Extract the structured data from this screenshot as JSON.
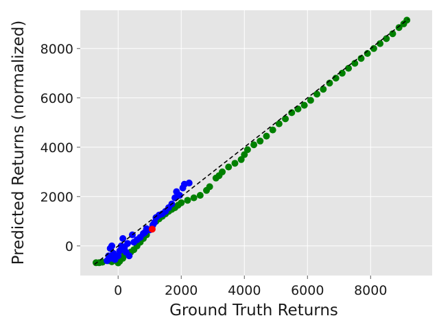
{
  "chart_data": {
    "type": "scatter",
    "title": "",
    "xlabel": "Ground Truth Returns",
    "ylabel": "Predicted Returns (normalized)",
    "xlim": [
      -1200,
      9950
    ],
    "ylim": [
      -1200,
      9550
    ],
    "xticks": [
      0,
      2000,
      4000,
      6000,
      8000
    ],
    "yticks": [
      0,
      2000,
      4000,
      6000,
      8000
    ],
    "xtick_labels": [
      "0",
      "2000",
      "4000",
      "6000",
      "8000"
    ],
    "ytick_labels": [
      "0",
      "2000",
      "4000",
      "6000",
      "8000"
    ],
    "grid": true,
    "legend": "none",
    "reference_line": {
      "style": "dashed",
      "color": "#000000",
      "x": [
        -750,
        9200
      ],
      "y": [
        -750,
        9200
      ]
    },
    "series": [
      {
        "color": "#008000",
        "points": [
          [
            -700,
            -680
          ],
          [
            -600,
            -680
          ],
          [
            -500,
            -660
          ],
          [
            -300,
            -600
          ],
          [
            -200,
            -640
          ],
          [
            -100,
            -580
          ],
          [
            0,
            -690
          ],
          [
            50,
            -620
          ],
          [
            150,
            -500
          ],
          [
            200,
            -300
          ],
          [
            300,
            -350
          ],
          [
            400,
            -250
          ],
          [
            500,
            -150
          ],
          [
            600,
            0
          ],
          [
            700,
            150
          ],
          [
            800,
            300
          ],
          [
            900,
            450
          ],
          [
            1000,
            650
          ],
          [
            1100,
            850
          ],
          [
            1200,
            1000
          ],
          [
            1300,
            1100
          ],
          [
            1400,
            1200
          ],
          [
            1500,
            1300
          ],
          [
            1600,
            1400
          ],
          [
            1700,
            1480
          ],
          [
            1800,
            1550
          ],
          [
            1900,
            1650
          ],
          [
            2000,
            1750
          ],
          [
            2200,
            1850
          ],
          [
            2400,
            1950
          ],
          [
            2600,
            2050
          ],
          [
            2800,
            2250
          ],
          [
            2900,
            2400
          ],
          [
            3100,
            2750
          ],
          [
            3200,
            2850
          ],
          [
            3300,
            3000
          ],
          [
            3500,
            3200
          ],
          [
            3700,
            3350
          ],
          [
            3900,
            3500
          ],
          [
            4000,
            3700
          ],
          [
            4100,
            3900
          ],
          [
            4300,
            4100
          ],
          [
            4500,
            4250
          ],
          [
            4700,
            4450
          ],
          [
            4900,
            4700
          ],
          [
            5100,
            4950
          ],
          [
            5300,
            5150
          ],
          [
            5500,
            5400
          ],
          [
            5700,
            5550
          ],
          [
            5900,
            5700
          ],
          [
            6100,
            5900
          ],
          [
            6300,
            6150
          ],
          [
            6500,
            6350
          ],
          [
            6700,
            6600
          ],
          [
            6900,
            6800
          ],
          [
            7100,
            7000
          ],
          [
            7300,
            7200
          ],
          [
            7500,
            7400
          ],
          [
            7700,
            7600
          ],
          [
            7900,
            7800
          ],
          [
            8100,
            8000
          ],
          [
            8300,
            8200
          ],
          [
            8500,
            8400
          ],
          [
            8700,
            8600
          ],
          [
            8900,
            8850
          ],
          [
            9050,
            9000
          ],
          [
            9150,
            9150
          ]
        ]
      },
      {
        "color": "#0000ff",
        "points": [
          [
            -350,
            -600
          ],
          [
            -300,
            -400
          ],
          [
            -200,
            -500
          ],
          [
            -250,
            -100
          ],
          [
            -200,
            0
          ],
          [
            -150,
            -300
          ],
          [
            -100,
            -550
          ],
          [
            0,
            -400
          ],
          [
            50,
            -200
          ],
          [
            100,
            0
          ],
          [
            150,
            300
          ],
          [
            200,
            -50
          ],
          [
            250,
            -250
          ],
          [
            300,
            100
          ],
          [
            350,
            -400
          ],
          [
            450,
            450
          ],
          [
            500,
            150
          ],
          [
            600,
            250
          ],
          [
            700,
            350
          ],
          [
            800,
            500
          ],
          [
            850,
            550
          ],
          [
            900,
            700
          ],
          [
            1000,
            650
          ],
          [
            1100,
            850
          ],
          [
            1150,
            950
          ],
          [
            1200,
            1150
          ],
          [
            1300,
            1250
          ],
          [
            1400,
            1300
          ],
          [
            1500,
            1400
          ],
          [
            1600,
            1550
          ],
          [
            1700,
            1700
          ],
          [
            1800,
            1950
          ],
          [
            1850,
            2200
          ],
          [
            1950,
            2050
          ],
          [
            2050,
            2350
          ],
          [
            2100,
            2500
          ],
          [
            2250,
            2550
          ]
        ]
      },
      {
        "color": "#ff0000",
        "points": [
          [
            1080,
            680
          ]
        ]
      }
    ]
  }
}
